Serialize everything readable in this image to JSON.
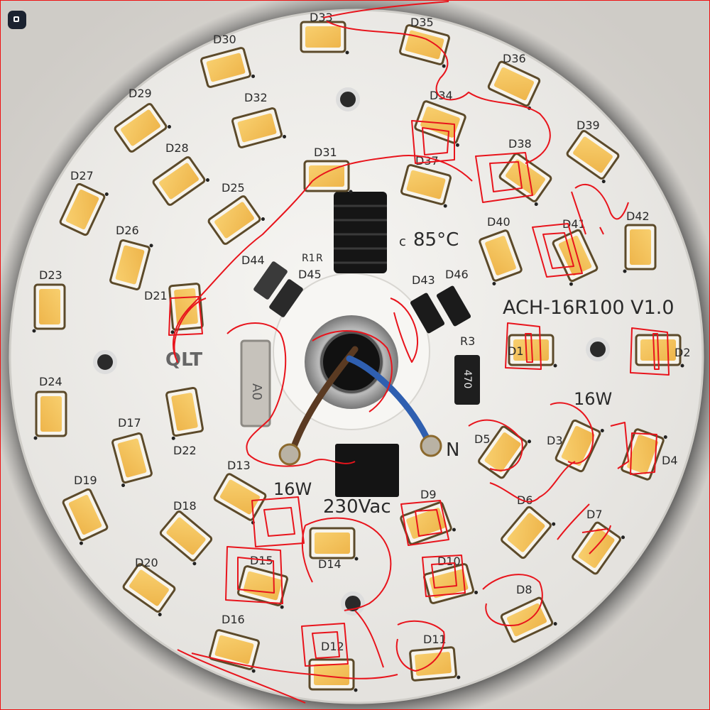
{
  "board": {
    "model": "ACH-16R100 V1.0",
    "brand": "QLT",
    "power_top": "16W",
    "power_bottom": "16W",
    "voltage": "230Vac",
    "temperature": "85°C",
    "terminal_n": "N",
    "resistor_r3": "R3",
    "resistor_value": "470",
    "smd_mark": "A0",
    "labels_small": [
      "R1",
      "R",
      "c"
    ]
  },
  "leds": [
    {
      "label": "D1",
      "angle": 0
    },
    {
      "label": "D2",
      "angle": 0
    },
    {
      "label": "D3",
      "angle": -65
    },
    {
      "label": "D4",
      "angle": -70
    },
    {
      "label": "D5",
      "angle": -55
    },
    {
      "label": "D6",
      "angle": -50
    },
    {
      "label": "D7",
      "angle": -55
    },
    {
      "label": "D8",
      "angle": -25
    },
    {
      "label": "D9",
      "angle": -20
    },
    {
      "label": "D10",
      "angle": -15
    },
    {
      "label": "D11",
      "angle": -5
    },
    {
      "label": "D12",
      "angle": 0
    },
    {
      "label": "D13",
      "angle": 30
    },
    {
      "label": "D14",
      "angle": 0
    },
    {
      "label": "D15",
      "angle": 15
    },
    {
      "label": "D16",
      "angle": 15
    },
    {
      "label": "D17",
      "angle": 75
    },
    {
      "label": "D18",
      "angle": 40
    },
    {
      "label": "D19",
      "angle": 65
    },
    {
      "label": "D20",
      "angle": 35
    },
    {
      "label": "D21",
      "angle": 85
    },
    {
      "label": "D22",
      "angle": 80
    },
    {
      "label": "D23",
      "angle": 90
    },
    {
      "label": "D24",
      "angle": 90
    },
    {
      "label": "D25",
      "angle": -35
    },
    {
      "label": "D26",
      "angle": -75
    },
    {
      "label": "D27",
      "angle": -65
    },
    {
      "label": "D28",
      "angle": -35
    },
    {
      "label": "D29",
      "angle": -35
    },
    {
      "label": "D30",
      "angle": -15
    },
    {
      "label": "D31",
      "angle": 0
    },
    {
      "label": "D32",
      "angle": -15
    },
    {
      "label": "D33",
      "angle": 0
    },
    {
      "label": "D34",
      "angle": 20
    },
    {
      "label": "D35",
      "angle": 15
    },
    {
      "label": "D36",
      "angle": 25
    },
    {
      "label": "D37",
      "angle": 15
    },
    {
      "label": "D38",
      "angle": 35
    },
    {
      "label": "D39",
      "angle": 35
    },
    {
      "label": "D40",
      "angle": 70
    },
    {
      "label": "D41",
      "angle": 65
    },
    {
      "label": "D42",
      "angle": 90
    }
  ],
  "components": {
    "d43": "D43",
    "d44": "D44",
    "d45": "D45",
    "d46": "D46"
  },
  "colors": {
    "background": "#d9d7d3",
    "board": "#eceae6",
    "led_body": "#f3c35c",
    "led_frame": "#f7f4ec",
    "annotation": "#e8141c",
    "wire_blue": "#2f5fb0",
    "wire_brown": "#5a3a22"
  }
}
